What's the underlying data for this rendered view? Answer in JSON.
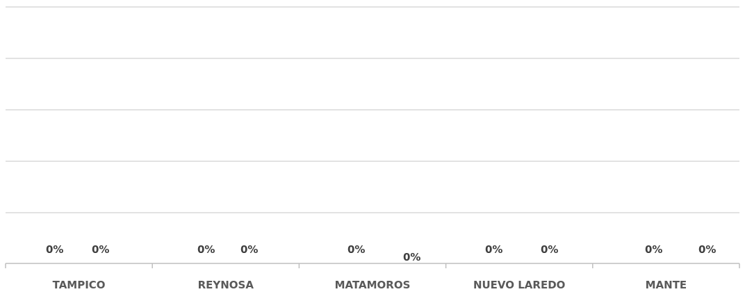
{
  "chart_data": {
    "type": "bar",
    "categories": [
      "TAMPICO",
      "REYNOSA",
      "MATAMOROS",
      "NUEVO LAREDO",
      "MANTE"
    ],
    "series": [
      {
        "values": [
          0,
          0,
          0,
          0,
          0
        ],
        "labels": [
          "0%",
          "0%",
          "0%",
          "0%",
          "0%"
        ]
      },
      {
        "values": [
          0,
          0,
          0,
          0,
          0
        ],
        "labels": [
          "0%",
          "0%",
          "0%",
          "0%",
          "0%"
        ]
      }
    ],
    "title": "",
    "xlabel": "",
    "ylabel": "",
    "grid": true,
    "gridline_color": "#d9d9d9",
    "axis_color": "#bfbfbf",
    "label_color": "#404040",
    "category_color": "#595959"
  }
}
